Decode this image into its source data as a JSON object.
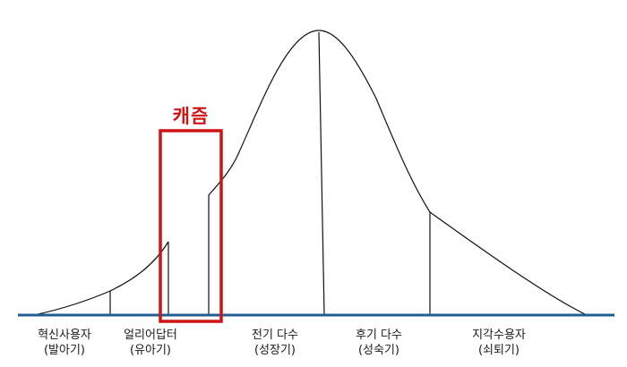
{
  "colors": {
    "curve": "#111111",
    "baseline": "#1f5f93",
    "chasm": "#d01414",
    "text": "#1a1a1a"
  },
  "chasm": {
    "title": "캐즘"
  },
  "segments": [
    {
      "name": "혁신사용자",
      "stage": "(발아기)"
    },
    {
      "name": "얼리어답터",
      "stage": "(유아기)"
    },
    {
      "name": "전기 다수",
      "stage": "(성장기)"
    },
    {
      "name": "후기 다수",
      "stage": "(성숙기)"
    },
    {
      "name": "지각수용자",
      "stage": "(쇠퇴기)"
    }
  ]
}
